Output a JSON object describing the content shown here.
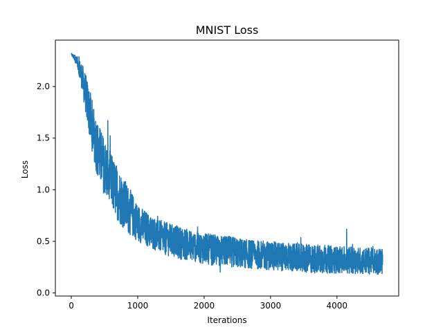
{
  "chart_data": {
    "type": "line",
    "title": "MNIST Loss",
    "xlabel": "Iterations",
    "ylabel": "Loss",
    "xlim": [
      -240,
      4930
    ],
    "ylim": [
      -0.03,
      2.45
    ],
    "x_ticks": [
      0,
      1000,
      2000,
      3000,
      4000
    ],
    "x_tick_labels": [
      "0",
      "1000",
      "2000",
      "3000",
      "4000"
    ],
    "y_ticks": [
      0.0,
      0.5,
      1.0,
      1.5,
      2.0
    ],
    "y_tick_labels": [
      "0.0",
      "0.5",
      "1.0",
      "1.5",
      "2.0"
    ],
    "grid": false,
    "series": [
      {
        "color": "#1f77b4",
        "x": [
          0,
          50,
          100,
          150,
          200,
          250,
          300,
          350,
          400,
          500,
          600,
          700,
          800,
          900,
          1000,
          1200,
          1400,
          1600,
          1800,
          2000,
          2200,
          2400,
          2600,
          2800,
          3000,
          3200,
          3400,
          3600,
          3800,
          4000,
          4200,
          4400,
          4600,
          4690
        ],
        "y": [
          2.31,
          2.28,
          2.22,
          2.12,
          1.98,
          1.82,
          1.66,
          1.52,
          1.38,
          1.22,
          1.08,
          0.96,
          0.86,
          0.77,
          0.68,
          0.59,
          0.53,
          0.49,
          0.46,
          0.43,
          0.41,
          0.4,
          0.38,
          0.37,
          0.36,
          0.35,
          0.34,
          0.33,
          0.33,
          0.32,
          0.32,
          0.31,
          0.31,
          0.31
        ],
        "noise": [
          0.01,
          0.03,
          0.06,
          0.12,
          0.18,
          0.22,
          0.25,
          0.27,
          0.28,
          0.28,
          0.27,
          0.26,
          0.25,
          0.22,
          0.18,
          0.16,
          0.16,
          0.16,
          0.15,
          0.15,
          0.15,
          0.15,
          0.14,
          0.14,
          0.14,
          0.14,
          0.14,
          0.14,
          0.14,
          0.13,
          0.13,
          0.13,
          0.13,
          0.13
        ]
      }
    ]
  }
}
